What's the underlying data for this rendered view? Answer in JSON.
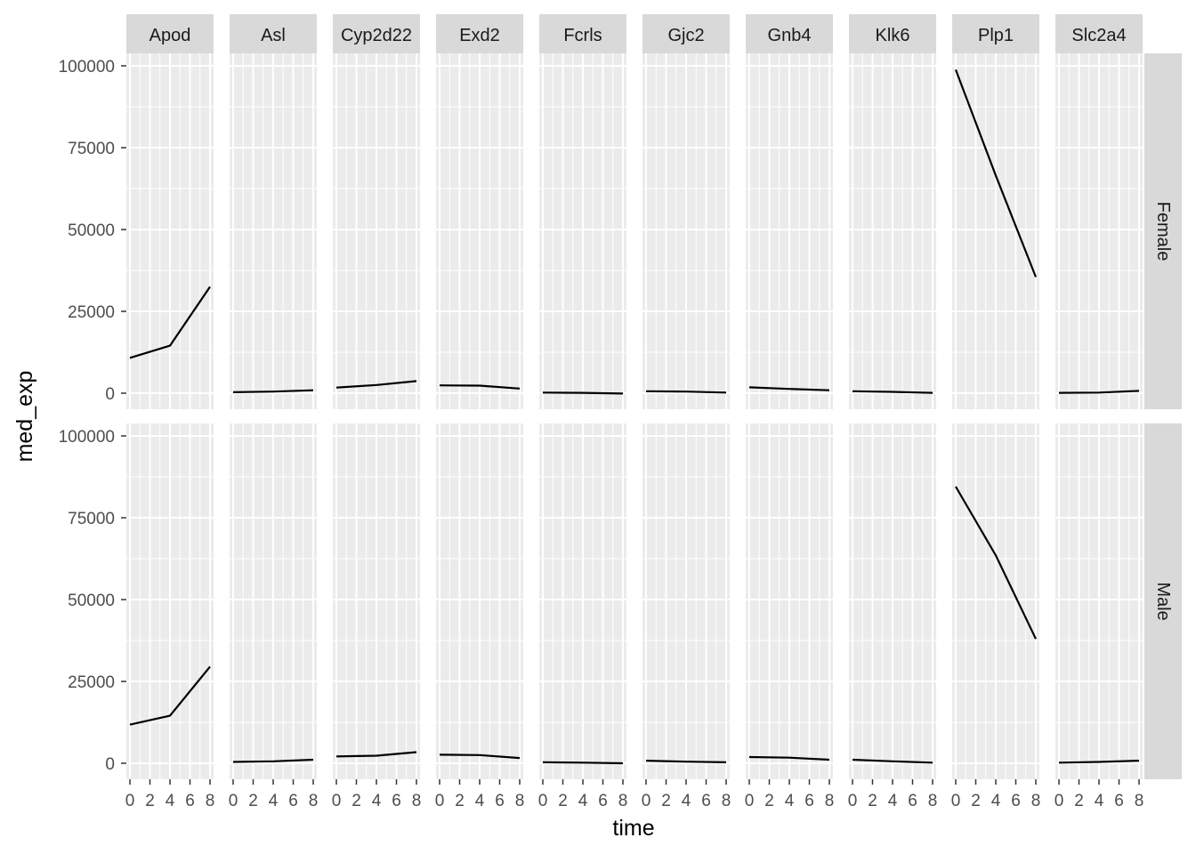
{
  "chart_data": {
    "type": "line",
    "xlabel": "time",
    "ylabel": "med_exp",
    "xlim": [
      0,
      8
    ],
    "ylim": [
      0,
      100000
    ],
    "x_ticks": [
      0,
      2,
      4,
      6,
      8
    ],
    "y_ticks": [
      0,
      25000,
      50000,
      75000,
      100000
    ],
    "y_tick_labels": [
      "0",
      "25000",
      "50000",
      "75000",
      "100000"
    ],
    "genes": [
      "Apod",
      "Asl",
      "Cyp2d22",
      "Exd2",
      "Fcrls",
      "Gjc2",
      "Gnb4",
      "Klk6",
      "Plp1",
      "Slc2a4"
    ],
    "sexes": [
      "Female",
      "Male"
    ],
    "x": [
      0,
      4,
      8
    ],
    "series": {
      "Female": {
        "Apod": [
          10800,
          14500,
          32500
        ],
        "Asl": [
          300,
          500,
          900
        ],
        "Cyp2d22": [
          1700,
          2500,
          3700
        ],
        "Exd2": [
          2400,
          2300,
          1400
        ],
        "Fcrls": [
          200,
          100,
          -100
        ],
        "Gjc2": [
          600,
          500,
          200
        ],
        "Gnb4": [
          1800,
          1300,
          900
        ],
        "Klk6": [
          600,
          400,
          100
        ],
        "Plp1": [
          98800,
          66500,
          35500
        ],
        "Slc2a4": [
          100,
          200,
          700
        ]
      },
      "Male": {
        "Apod": [
          11800,
          14500,
          29500
        ],
        "Asl": [
          400,
          600,
          1100
        ],
        "Cyp2d22": [
          2100,
          2300,
          3400
        ],
        "Exd2": [
          2600,
          2500,
          1600
        ],
        "Fcrls": [
          300,
          200,
          0
        ],
        "Gjc2": [
          800,
          500,
          300
        ],
        "Gnb4": [
          1900,
          1700,
          1100
        ],
        "Klk6": [
          1100,
          600,
          200
        ],
        "Plp1": [
          84500,
          63500,
          38000
        ],
        "Slc2a4": [
          200,
          400,
          800
        ]
      }
    },
    "grid": true,
    "colors": {
      "panel_bg": "#EBEBEB",
      "grid": "#FFFFFF",
      "strip_bg": "#D9D9D9",
      "line": "#000000"
    }
  }
}
